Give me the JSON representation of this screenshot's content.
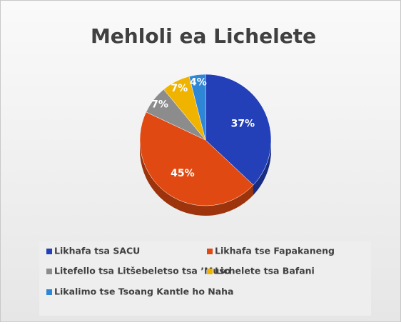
{
  "chart_data": {
    "type": "pie",
    "title": "Mehloli ea Lichelete",
    "categories": [
      "Likhafa tsa SACU",
      "Likhafa tse Fapakaneng",
      "Litefello tsa Litšebeletso tsa ’Muso",
      "Lichelete tsa Bafani",
      "Likalimo tse Tsoang Kantle ho Naha"
    ],
    "values": [
      37,
      45,
      7,
      7,
      4
    ],
    "value_labels": [
      "37%",
      "45%",
      "7%",
      "7%",
      "4%"
    ],
    "colors": [
      "#2340b8",
      "#e04a12",
      "#8c8c8c",
      "#f0b400",
      "#2e86d6"
    ],
    "legend": "bottom"
  }
}
